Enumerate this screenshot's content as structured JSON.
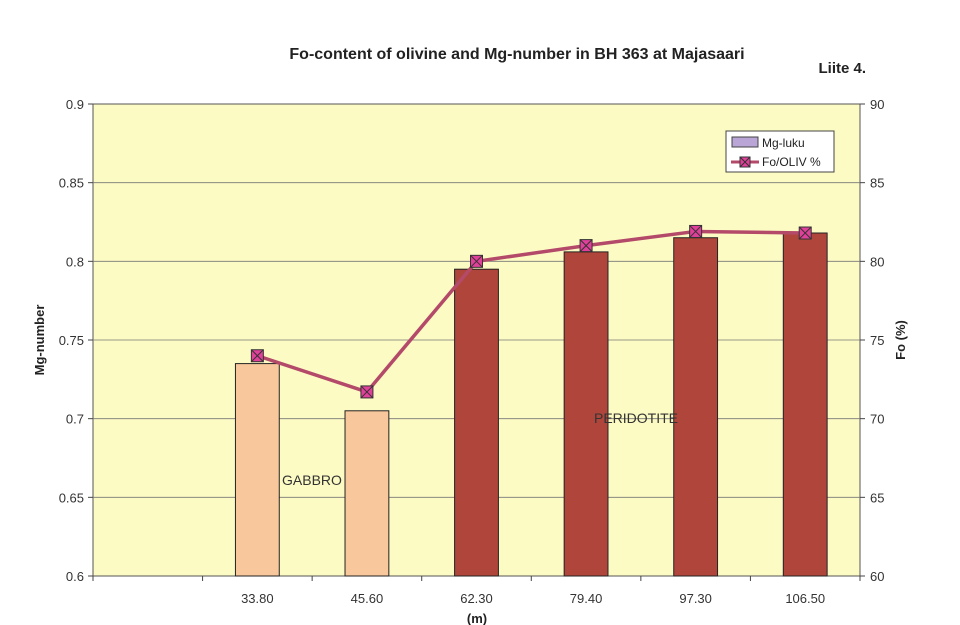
{
  "page": {
    "corner_note": "Liite 4."
  },
  "colors": {
    "plot_bg": "#fdfbc4",
    "gabbro_bar": "#f8c79c",
    "peridotite_bar": "#b0463b",
    "line": "#b44a6a",
    "marker": "#e0409a",
    "legend_swatch": "#b9a6d6"
  },
  "chart_data": {
    "type": "bar",
    "title": "Fo-content of olivine and Mg-number in BH 363 at Majasaari",
    "xlabel": "(m)",
    "ylabel": "Mg-number",
    "y2label": "Fo (%)",
    "categories": [
      "",
      "33.80",
      "45.60",
      "62.30",
      "79.40",
      "97.30",
      "106.50"
    ],
    "ylim": [
      0.6,
      0.9
    ],
    "yticks": [
      "0.6",
      "0.65",
      "0.7",
      "0.75",
      "0.8",
      "0.85",
      "0.9"
    ],
    "y2lim": [
      60,
      90
    ],
    "y2ticks": [
      "60",
      "65",
      "70",
      "75",
      "80",
      "85",
      "90"
    ],
    "grid": true,
    "legend_position": "top-right",
    "series": [
      {
        "name": "Mg-luku",
        "kind": "bar",
        "axis": "left",
        "values": [
          null,
          0.735,
          0.705,
          0.795,
          0.806,
          0.815,
          0.818
        ]
      },
      {
        "name": "Fo/OLIV %",
        "kind": "line",
        "axis": "right",
        "values": [
          null,
          74.0,
          71.7,
          80.0,
          81.0,
          81.9,
          81.8
        ]
      }
    ],
    "annotations": [
      "GABBRO",
      "PERIDOTITE"
    ]
  }
}
